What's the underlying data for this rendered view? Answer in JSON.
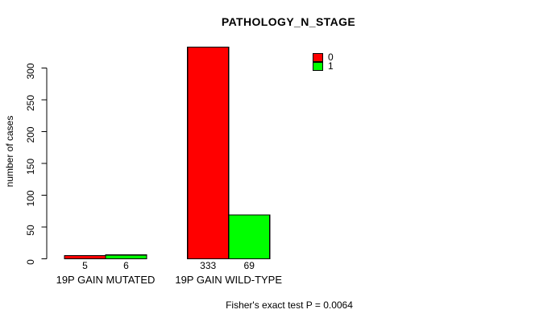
{
  "chart": {
    "title": "PATHOLOGY_N_STAGE",
    "ylabel": "number of cases",
    "footer": "Fisher's exact test P = 0.0064",
    "colors": {
      "series0": "#FF0000",
      "series1": "#00FF00",
      "axis": "#000000",
      "background": "#FFFFFF"
    }
  },
  "chart_data": {
    "type": "bar",
    "grouped": true,
    "title": "PATHOLOGY_N_STAGE",
    "ylabel": "number of cases",
    "xlabel": "",
    "categories": [
      "19P GAIN MUTATED",
      "19P GAIN WILD-TYPE"
    ],
    "series": [
      {
        "name": "0",
        "color": "#FF0000",
        "values": [
          5,
          333
        ]
      },
      {
        "name": "1",
        "color": "#00FF00",
        "values": [
          6,
          69
        ]
      }
    ],
    "bar_value_labels": [
      [
        "5",
        "333"
      ],
      [
        "6",
        "69"
      ]
    ],
    "yticks": [
      0,
      50,
      100,
      150,
      200,
      250,
      300
    ],
    "ylim": [
      0,
      335
    ],
    "grid": false,
    "legend_position": "top-right",
    "annotation": "Fisher's exact test P = 0.0064"
  }
}
